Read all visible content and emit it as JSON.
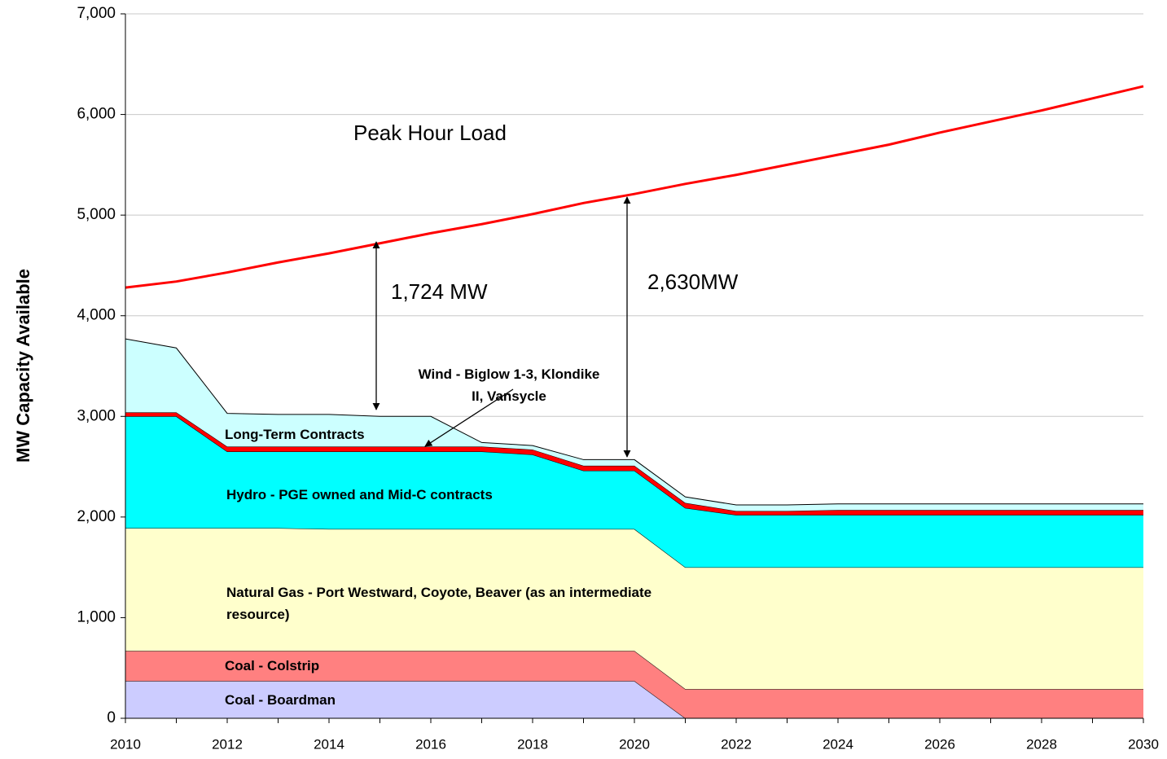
{
  "chart_data": {
    "type": "stacked_area",
    "ylabel": "MW Capacity Available",
    "x": [
      2010,
      2011,
      2012,
      2013,
      2014,
      2015,
      2016,
      2017,
      2018,
      2019,
      2020,
      2021,
      2022,
      2023,
      2024,
      2025,
      2026,
      2027,
      2028,
      2029,
      2030
    ],
    "xlim": [
      2010,
      2030
    ],
    "xticks": [
      2010,
      2012,
      2014,
      2016,
      2018,
      2020,
      2022,
      2024,
      2026,
      2028,
      2030
    ],
    "ylim": [
      0,
      7000
    ],
    "yticks": [
      0,
      {
        "value": 1000,
        "label": "1,000"
      },
      {
        "value": 2000,
        "label": "2,000"
      },
      {
        "value": 3000,
        "label": "3,000"
      },
      {
        "value": 4000,
        "label": "4,000"
      },
      {
        "value": 5000,
        "label": "5,000"
      },
      {
        "value": 6000,
        "label": "6,000"
      },
      {
        "value": 7000,
        "label": "7,000"
      }
    ],
    "grid": true,
    "series": [
      {
        "name": "Coal - Boardman",
        "color": "#ccccff",
        "values": [
          370,
          370,
          370,
          370,
          370,
          370,
          370,
          370,
          370,
          370,
          370,
          0,
          0,
          0,
          0,
          0,
          0,
          0,
          0,
          0,
          0
        ]
      },
      {
        "name": "Coal - Colstrip",
        "color": "#ff8080",
        "values": [
          300,
          300,
          300,
          300,
          300,
          300,
          300,
          300,
          300,
          300,
          300,
          290,
          290,
          290,
          290,
          290,
          290,
          290,
          290,
          290,
          290
        ]
      },
      {
        "name": "Natural Gas - Port Westward, Coyote, Beaver (as an intermediate resource)",
        "color": "#ffffcc",
        "values": [
          1220,
          1220,
          1220,
          1220,
          1210,
          1210,
          1210,
          1210,
          1210,
          1210,
          1210,
          1210,
          1210,
          1210,
          1210,
          1210,
          1210,
          1210,
          1210,
          1210,
          1210
        ]
      },
      {
        "name": "Hydro - PGE owned and Mid-C contracts",
        "color": "#00ffff",
        "values": [
          1110,
          1110,
          760,
          760,
          770,
          770,
          770,
          770,
          740,
          580,
          580,
          590,
          520,
          520,
          520,
          520,
          520,
          520,
          520,
          520,
          520
        ]
      },
      {
        "name": "Wind - Biglow 1-3, Klondike II, Vansycle",
        "color": "#ff0000",
        "values": [
          40,
          40,
          50,
          50,
          50,
          50,
          50,
          50,
          50,
          50,
          50,
          50,
          40,
          40,
          50,
          50,
          50,
          50,
          50,
          50,
          50
        ]
      },
      {
        "name": "Long-Term Contracts",
        "color": "#ccffff",
        "values": [
          730,
          640,
          330,
          320,
          320,
          300,
          300,
          40,
          40,
          60,
          60,
          60,
          60,
          60,
          60,
          60,
          60,
          60,
          60,
          60,
          60
        ]
      }
    ],
    "line": {
      "name": "Peak Hour Load",
      "color": "#ff0000",
      "values": [
        4280,
        4340,
        4430,
        4530,
        4620,
        4720,
        4820,
        4910,
        5010,
        5120,
        5210,
        5310,
        5400,
        5500,
        5600,
        5700,
        5820,
        5930,
        6040,
        6160,
        6280
      ]
    },
    "annotations": [
      "1,724 MW",
      "2,630MW"
    ]
  }
}
